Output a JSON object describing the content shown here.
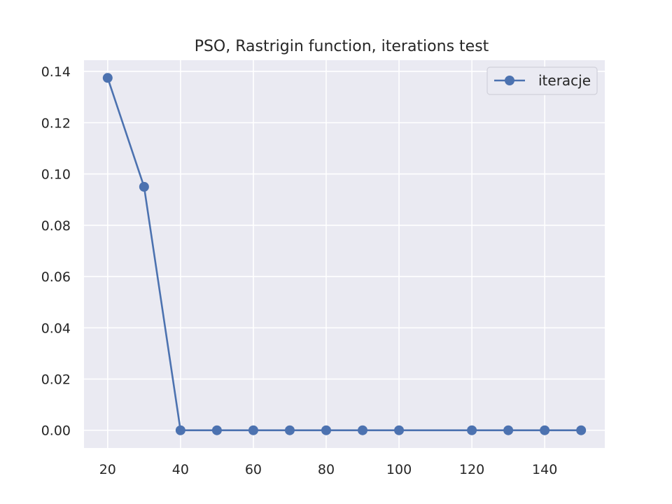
{
  "chart_data": {
    "type": "line",
    "title": "PSO, Rastrigin function, iterations test",
    "xlabel": "",
    "ylabel": "",
    "x": [
      20,
      30,
      40,
      50,
      60,
      70,
      80,
      90,
      100,
      120,
      130,
      140,
      150
    ],
    "series": [
      {
        "name": "iteracje",
        "values": [
          0.1375,
          0.095,
          0.0,
          0.0,
          0.0,
          0.0,
          0.0,
          0.0,
          0.0,
          0.0,
          0.0,
          0.0,
          0.0
        ],
        "marker": "circle"
      }
    ],
    "xlim": [
      13.5,
      156.5
    ],
    "ylim": [
      -0.0069,
      0.1444
    ],
    "xticks": [
      20,
      40,
      60,
      80,
      100,
      120,
      140
    ],
    "yticks": [
      0.0,
      0.02,
      0.04,
      0.06,
      0.08,
      0.1,
      0.12,
      0.14
    ],
    "ytick_labels": [
      "0.00",
      "0.02",
      "0.04",
      "0.06",
      "0.08",
      "0.10",
      "0.12",
      "0.14"
    ],
    "grid": true,
    "legend_position": "upper right",
    "colors": {
      "background": "#eaeaf2",
      "grid": "#ffffff",
      "series": "#4c72b0",
      "text": "#262626"
    }
  }
}
